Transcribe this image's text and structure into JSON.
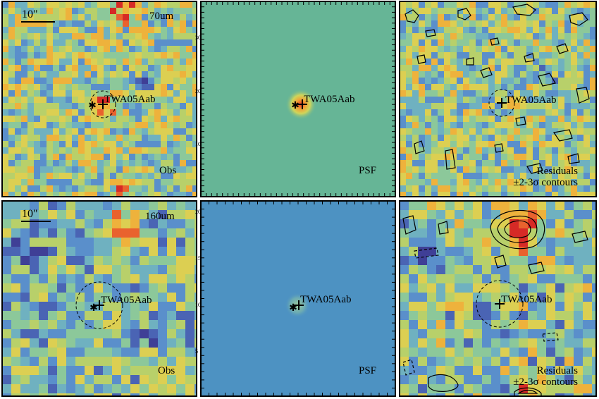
{
  "figure": {
    "rows": [
      {
        "band_label": "70um",
        "scalebar_label": "10\"",
        "panels": [
          {
            "type": "obs",
            "target_label": "TWA05Aab",
            "corner_label": "Obs",
            "residual_lines": []
          },
          {
            "type": "psf",
            "target_label": "TWA05Aab",
            "corner_label": "PSF",
            "residual_lines": [],
            "tick_labels": [
              "30",
              "20",
              "10"
            ]
          },
          {
            "type": "residual",
            "target_label": "TWA05Aab",
            "corner_label": "",
            "residual_lines": [
              "Residuals",
              "±2-3σ contours"
            ]
          }
        ]
      },
      {
        "band_label": "160um",
        "scalebar_label": "10\"",
        "panels": [
          {
            "type": "obs",
            "target_label": "TWA05Aab",
            "corner_label": "Obs",
            "residual_lines": []
          },
          {
            "type": "psf",
            "target_label": "TWA05Aab",
            "corner_label": "PSF",
            "residual_lines": [],
            "tick_labels": [
              "20",
              "15",
              "10",
              "5"
            ]
          },
          {
            "type": "residual",
            "target_label": "TWA05Aab",
            "corner_label": "",
            "residual_lines": [
              "Residuals",
              "±2-3σ contours"
            ]
          }
        ]
      }
    ],
    "colors": {
      "frame": "#000000",
      "psf_background_70um": "#66b596",
      "psf_background_160um": "#4d92c2",
      "source_peak": "#e8382a",
      "source_ring": "#f5a536"
    }
  }
}
